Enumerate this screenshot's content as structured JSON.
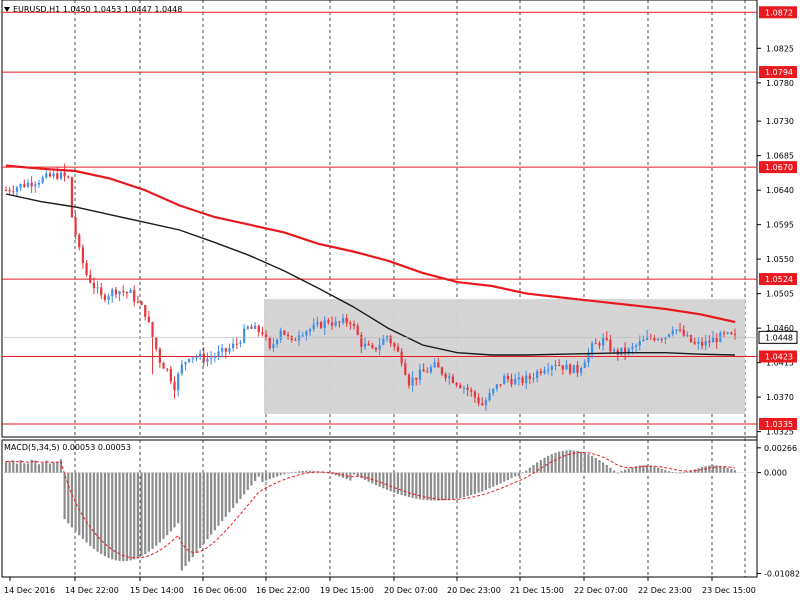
{
  "header": {
    "symbol_info": "EURUSD,H1  1.0450 1.0453 1.0447 1.0448"
  },
  "macd_header": {
    "label": "MACD(5,34,5) 0.00053 0.00053"
  },
  "colors": {
    "bull": "#3f8ee6",
    "bear": "#e8343c",
    "ma_slow": "#e8191f",
    "ma_fast": "#1a1a1a",
    "level_line": "#e8191f",
    "zone": "#d3d3d3",
    "histogram": "#8c8c8c",
    "signal": "#e8191f",
    "grid": "#000000",
    "price_tag_bg": "#e8191f",
    "current_tag_bg": "#ffffff"
  },
  "chart_data": [
    {
      "type": "candlestick",
      "title": "EURUSD,H1",
      "price_axis_ticks": [
        "1.0825",
        "1.0780",
        "1.0730",
        "1.0685",
        "1.0640",
        "1.0595",
        "1.0550",
        "1.0505",
        "1.0460",
        "1.0415",
        "1.0370",
        "1.0325"
      ],
      "time_axis_ticks": [
        "14 Dec 2016",
        "14 Dec 22:00",
        "15 Dec 14:00",
        "16 Dec 06:00",
        "16 Dec 22:00",
        "19 Dec 15:00",
        "20 Dec 07:00",
        "20 Dec 23:00",
        "21 Dec 15:00",
        "22 Dec 07:00",
        "22 Dec 23:00",
        "23 Dec 15:00"
      ],
      "ylim": [
        1.0318,
        1.0888
      ],
      "horizontal_levels": [
        "1.0872",
        "1.0794",
        "1.0670",
        "1.0524",
        "1.0423",
        "1.0335"
      ],
      "current_price": "1.0448",
      "consolidation_zone": {
        "start": "16 Dec 22:00",
        "low": 1.0348,
        "high": 1.0498
      },
      "moving_averages": [
        {
          "points": [
            [
              1.0672,
              1.0668
            ],
            [
              1.0665,
              1.0655
            ],
            [
              1.064,
              1.062
            ],
            [
              1.0605,
              1.0595
            ],
            [
              1.0585,
              1.057
            ],
            [
              1.056,
              1.0548
            ],
            [
              1.0532,
              1.052
            ],
            [
              1.0515,
              1.0505
            ],
            [
              1.05,
              1.0495
            ],
            [
              1.049,
              1.0485
            ],
            [
              1.0478,
              1.0468
            ]
          ]
        },
        {
          "points": [
            [
              1.0635,
              1.0625
            ],
            [
              1.0618,
              1.0608
            ],
            [
              1.0598,
              1.0588
            ],
            [
              1.0572,
              1.0555
            ],
            [
              1.0535,
              1.0512
            ],
            [
              1.0488,
              1.046
            ],
            [
              1.0438,
              1.0428
            ],
            [
              1.0425,
              1.0425
            ],
            [
              1.0426,
              1.0427
            ],
            [
              1.0428,
              1.0428
            ],
            [
              1.0426,
              1.0425
            ]
          ]
        }
      ]
    },
    {
      "type": "bar",
      "title": "MACD(5,34,5)",
      "values_text": "0.00053 0.00053",
      "axis_ticks": [
        "0.00266",
        "0.000",
        "-0.01082"
      ],
      "ylim": [
        -0.0112,
        0.0035
      ]
    }
  ]
}
